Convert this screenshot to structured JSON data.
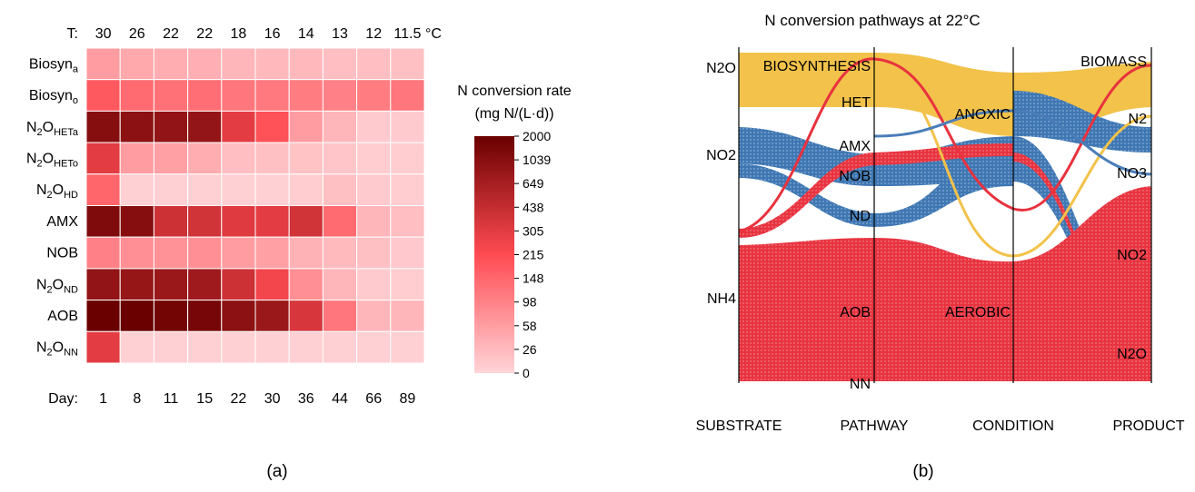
{
  "chart_data": [
    {
      "type": "heatmap",
      "panel_label": "(a)",
      "row_labels": [
        {
          "base": "Biosyn",
          "sub": "a"
        },
        {
          "base": "Biosyn",
          "sub": "o"
        },
        {
          "base": "N",
          "sub1": "2",
          "base2": "O",
          "sub": "HETa"
        },
        {
          "base": "N",
          "sub1": "2",
          "base2": "O",
          "sub": "HETo"
        },
        {
          "base": "N",
          "sub1": "2",
          "base2": "O",
          "sub": "HD"
        },
        {
          "base": "AMX"
        },
        {
          "base": "NOB"
        },
        {
          "base": "N",
          "sub1": "2",
          "base2": "O",
          "sub": "ND"
        },
        {
          "base": "AOB"
        },
        {
          "base": "N",
          "sub1": "2",
          "base2": "O",
          "sub": "NN"
        }
      ],
      "top_axis_label": "T:",
      "temperatures": [
        "30",
        "26",
        "22",
        "22",
        "18",
        "16",
        "14",
        "13",
        "12",
        "11.5"
      ],
      "temperature_unit": "°C",
      "bottom_axis_label": "Day:",
      "days": [
        "1",
        "8",
        "11",
        "15",
        "22",
        "30",
        "36",
        "44",
        "66",
        "89"
      ],
      "values": [
        [
          60,
          45,
          40,
          38,
          30,
          28,
          26,
          22,
          22,
          20
        ],
        [
          180,
          140,
          130,
          135,
          120,
          115,
          110,
          100,
          110,
          120
        ],
        [
          1100,
          1000,
          900,
          880,
          300,
          200,
          60,
          30,
          10,
          10
        ],
        [
          300,
          60,
          55,
          40,
          22,
          20,
          18,
          15,
          8,
          8
        ],
        [
          150,
          5,
          5,
          5,
          5,
          5,
          8,
          20,
          10,
          8
        ],
        [
          1300,
          1100,
          400,
          380,
          320,
          300,
          380,
          140,
          30,
          22
        ],
        [
          100,
          80,
          75,
          80,
          60,
          55,
          35,
          25,
          20,
          12
        ],
        [
          900,
          850,
          800,
          750,
          400,
          250,
          80,
          30,
          10,
          8
        ],
        [
          2000,
          2100,
          1700,
          1600,
          1000,
          800,
          350,
          120,
          30,
          30
        ],
        [
          300,
          5,
          5,
          5,
          5,
          5,
          5,
          5,
          5,
          5
        ]
      ],
      "colorbar": {
        "title_line1": "N conversion rate",
        "title_line2": "(mg N/(L·d))",
        "ticks": [
          "2000",
          "1039",
          "649",
          "438",
          "305",
          "215",
          "148",
          "98",
          "58",
          "26",
          "0"
        ],
        "color_low": "#ffd5d8",
        "color_mid": "#ff4b52",
        "color_high": "#6a0000"
      },
      "grid": true
    },
    {
      "type": "alluvial",
      "panel_label": "(b)",
      "title": "N conversion pathways at 22°C",
      "axes": [
        "SUBSTRATE",
        "PATHWAY",
        "CONDITION",
        "PRODUCT"
      ],
      "node_labels": {
        "substrate": [
          "N2O",
          "NO2",
          "NH4"
        ],
        "pathway": [
          "BIOSYNTHESIS",
          "HET",
          "AMX",
          "NOB",
          "ND",
          "AOB",
          "NN"
        ],
        "condition": [
          "ANOXIC",
          "AEROBIC"
        ],
        "product": [
          "BIOMASS",
          "N2",
          "NO3",
          "NO2",
          "N2O"
        ]
      },
      "flow_colors": {
        "biomass": "#f2c24a",
        "anoxic": "#4a7db8",
        "aerobic": "#e8323e"
      }
    }
  ]
}
